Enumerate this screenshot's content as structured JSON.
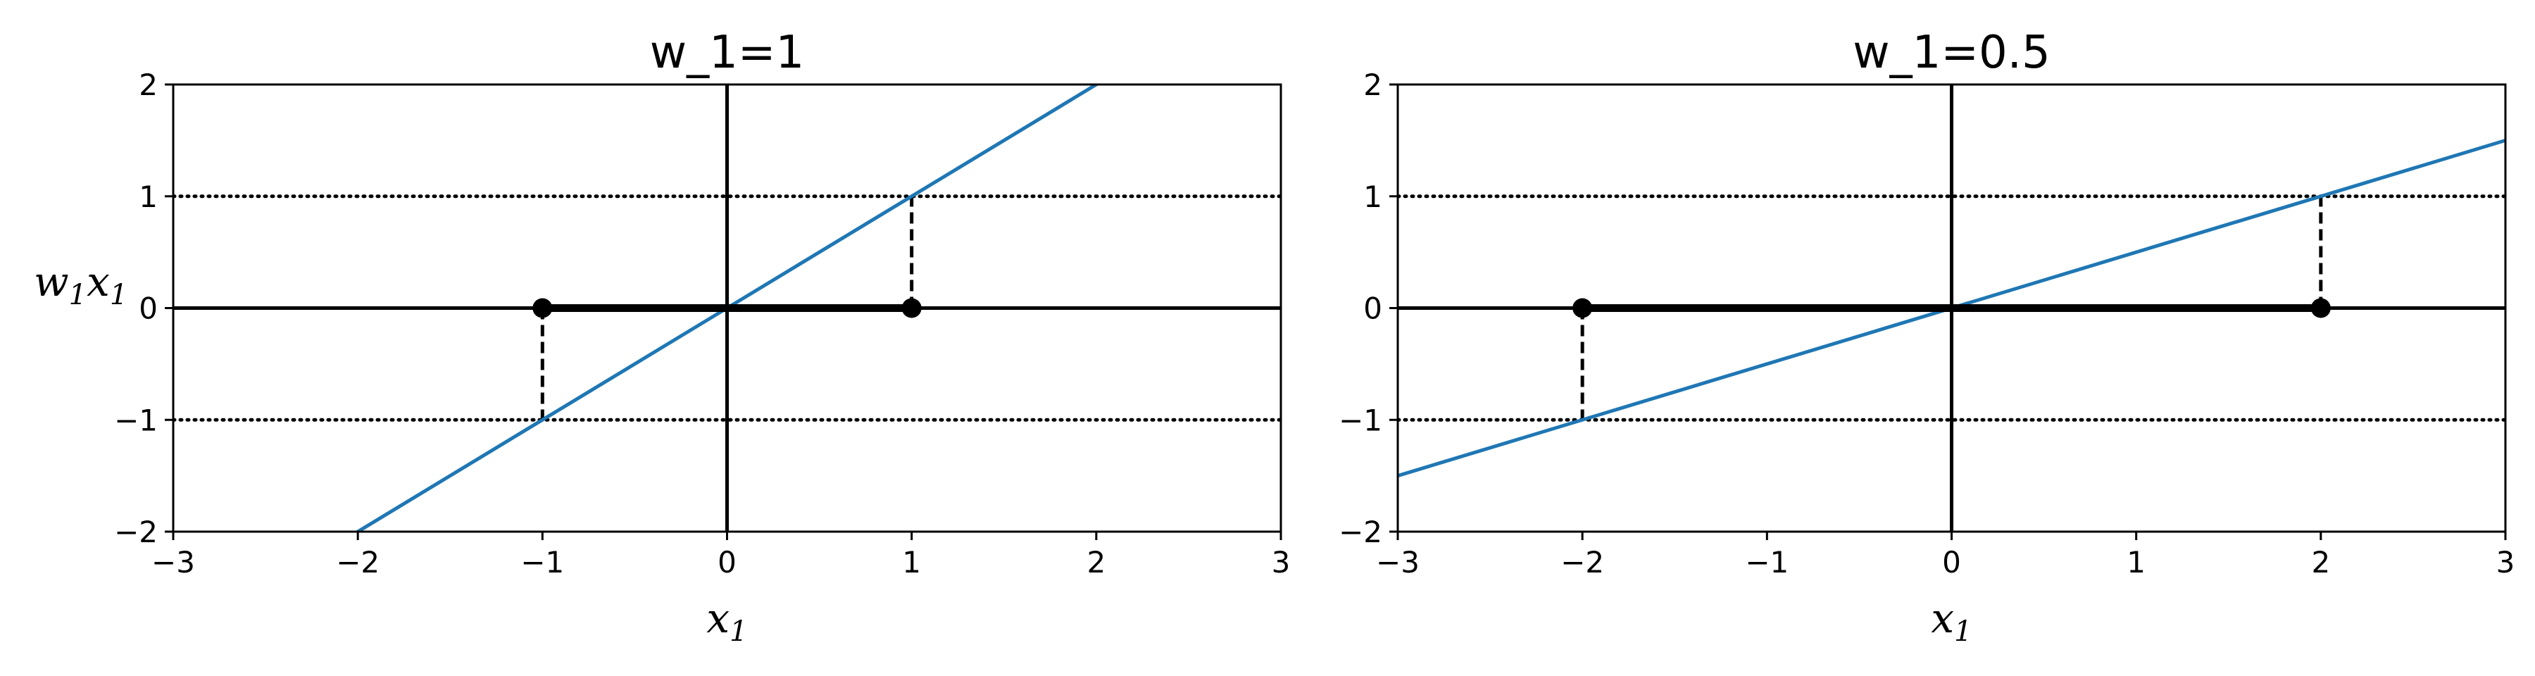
{
  "chart_data": [
    {
      "type": "line",
      "title": "w_1=1",
      "xlabel": "x",
      "xlabel_sub": "1",
      "ylabel": "w",
      "ylabel_sub1": "1",
      "ylabel_mid": "x",
      "ylabel_sub2": "1",
      "xlim": [
        -3,
        3
      ],
      "ylim": [
        -2,
        2
      ],
      "xticks": [
        -3,
        -2,
        -1,
        0,
        1,
        2,
        3
      ],
      "xtick_labels": [
        "−3",
        "−2",
        "−1",
        "0",
        "1",
        "2",
        "3"
      ],
      "yticks": [
        -2,
        -1,
        0,
        1,
        2
      ],
      "ytick_labels": [
        "−2",
        "−1",
        "0",
        "1",
        "2"
      ],
      "series": [
        {
          "x": [
            -3,
            3
          ],
          "y": [
            -3,
            3
          ],
          "color": "#1f77b4"
        }
      ],
      "points": [
        {
          "x": -1,
          "y": 0
        },
        {
          "x": 1,
          "y": 0
        }
      ],
      "segment": {
        "x0": -1,
        "x1": 1,
        "y": 0
      },
      "projections": [
        {
          "x": -1,
          "y": -1
        },
        {
          "x": 1,
          "y": 1
        }
      ],
      "dotted_levels": [
        -1,
        1
      ],
      "grid": false
    },
    {
      "type": "line",
      "title": "w_1=0.5",
      "xlabel": "x",
      "xlabel_sub": "1",
      "xlim": [
        -3,
        3
      ],
      "ylim": [
        -2,
        2
      ],
      "xticks": [
        -3,
        -2,
        -1,
        0,
        1,
        2,
        3
      ],
      "xtick_labels": [
        "−3",
        "−2",
        "−1",
        "0",
        "1",
        "2",
        "3"
      ],
      "yticks": [
        -2,
        -1,
        0,
        1,
        2
      ],
      "ytick_labels": [
        "−2",
        "−1",
        "0",
        "1",
        "2"
      ],
      "series": [
        {
          "x": [
            -3,
            3
          ],
          "y": [
            -1.5,
            1.5
          ],
          "color": "#1f77b4"
        }
      ],
      "points": [
        {
          "x": -2,
          "y": 0
        },
        {
          "x": 2,
          "y": 0
        }
      ],
      "segment": {
        "x0": -2,
        "x1": 2,
        "y": 0
      },
      "projections": [
        {
          "x": -2,
          "y": -1
        },
        {
          "x": 2,
          "y": 1
        }
      ],
      "dotted_levels": [
        -1,
        1
      ],
      "grid": false
    }
  ]
}
